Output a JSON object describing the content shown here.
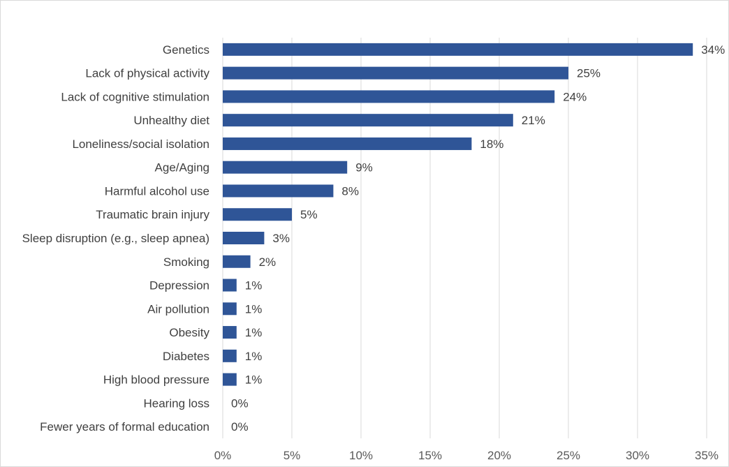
{
  "chart_data": {
    "type": "bar",
    "orientation": "horizontal",
    "title": "",
    "xlabel": "",
    "ylabel": "",
    "xlim": [
      0,
      35
    ],
    "grid": true,
    "bar_color": "#2F5597",
    "categories": [
      "Genetics",
      "Lack of physical activity",
      "Lack of cognitive stimulation",
      "Unhealthy diet",
      "Loneliness/social isolation",
      "Age/Aging",
      "Harmful alcohol use",
      "Traumatic brain injury",
      "Sleep disruption (e.g., sleep apnea)",
      "Smoking",
      "Depression",
      "Air pollution",
      "Obesity",
      "Diabetes",
      "High blood pressure",
      "Hearing loss",
      "Fewer years of formal education"
    ],
    "values": [
      34,
      25,
      24,
      21,
      18,
      9,
      8,
      5,
      3,
      2,
      1,
      1,
      1,
      1,
      1,
      0,
      0
    ],
    "value_labels": [
      "34%",
      "25%",
      "24%",
      "21%",
      "18%",
      "9%",
      "8%",
      "5%",
      "3%",
      "2%",
      "1%",
      "1%",
      "1%",
      "1%",
      "1%",
      "0%",
      "0%"
    ],
    "ticks": [
      0,
      5,
      10,
      15,
      20,
      25,
      30,
      35
    ],
    "tick_labels": [
      "0%",
      "5%",
      "10%",
      "15%",
      "20%",
      "25%",
      "30%",
      "35%"
    ]
  }
}
